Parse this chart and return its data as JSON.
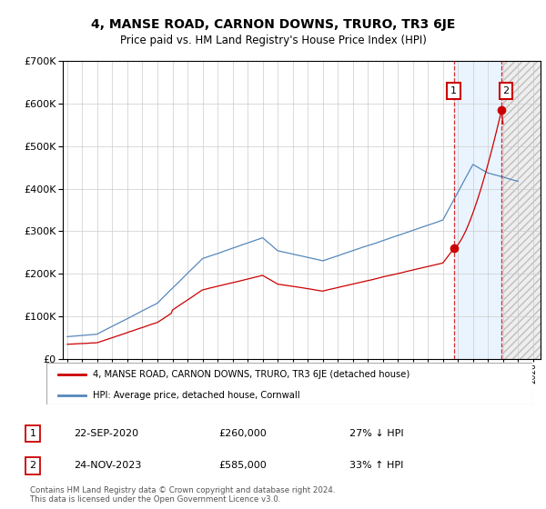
{
  "title": "4, MANSE ROAD, CARNON DOWNS, TRURO, TR3 6JE",
  "subtitle": "Price paid vs. HM Land Registry's House Price Index (HPI)",
  "legend_line1": "4, MANSE ROAD, CARNON DOWNS, TRURO, TR3 6JE (detached house)",
  "legend_line2": "HPI: Average price, detached house, Cornwall",
  "transaction1_date": "22-SEP-2020",
  "transaction1_price": 260000,
  "transaction1_label": "27% ↓ HPI",
  "transaction1_x": 2020.72,
  "transaction2_date": "24-NOV-2023",
  "transaction2_price": 585000,
  "transaction2_label": "33% ↑ HPI",
  "transaction2_x": 2023.9,
  "footer": "Contains HM Land Registry data © Crown copyright and database right 2024.\nThis data is licensed under the Open Government Licence v3.0.",
  "ylim": [
    0,
    700000
  ],
  "red_color": "#cc0000",
  "blue_color": "#5588bb",
  "shade_color": "#ddeeff",
  "grid_color": "#cccccc",
  "xlim_left": 1994.7,
  "xlim_right": 2026.5
}
